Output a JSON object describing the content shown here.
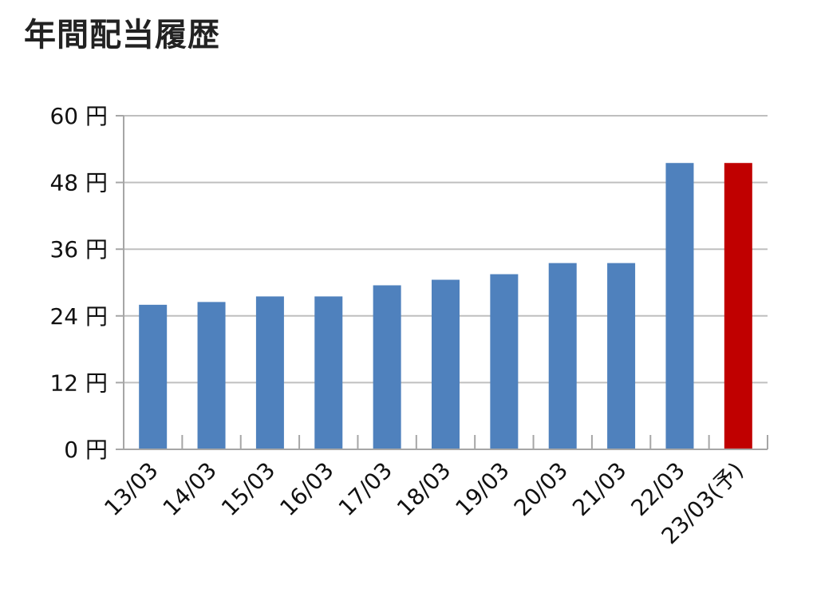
{
  "title": "年間配当履歴",
  "colors": {
    "bar": "#4f81bd",
    "bar_forecast": "#c00000",
    "grid": "#bfbfbf",
    "axis": "#a6a6a6"
  },
  "chart_data": {
    "type": "bar",
    "title": "年間配当履歴",
    "xlabel": "",
    "ylabel": "",
    "ylim": [
      0,
      60
    ],
    "y_ticks": [
      0,
      12,
      24,
      36,
      48,
      60
    ],
    "y_tick_labels": [
      "0 円",
      "12 円",
      "24 円",
      "36 円",
      "48 円",
      "60 円"
    ],
    "grid": true,
    "categories": [
      "13/03",
      "14/03",
      "15/03",
      "16/03",
      "17/03",
      "18/03",
      "19/03",
      "20/03",
      "21/03",
      "22/03",
      "23/03(予)"
    ],
    "values": [
      26,
      26.5,
      27.5,
      27.5,
      29.5,
      30.5,
      31.5,
      33.5,
      33.5,
      51.5,
      51.5
    ],
    "forecast": [
      false,
      false,
      false,
      false,
      false,
      false,
      false,
      false,
      false,
      false,
      true
    ]
  }
}
